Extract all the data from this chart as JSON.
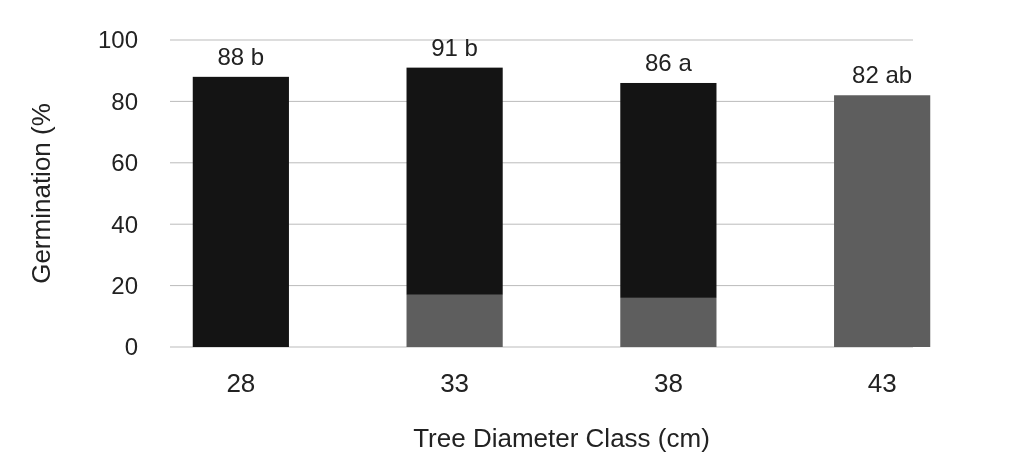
{
  "chart_data": {
    "type": "bar",
    "stacked": true,
    "xlabel": "Tree Diameter Class (cm)",
    "ylabel": "Germination (%",
    "categories": [
      "28",
      "33",
      "38",
      "43"
    ],
    "series": [
      {
        "color": "#5e5e5e",
        "values": [
          0,
          17,
          16,
          82
        ]
      },
      {
        "color": "#141414",
        "values": [
          88,
          74,
          70,
          0
        ]
      }
    ],
    "totals": [
      "88 b",
      "91 b",
      "86 a",
      "82 ab"
    ],
    "ylim": [
      0,
      100
    ],
    "yticks": [
      0,
      20,
      40,
      60,
      80,
      100
    ],
    "grid": "y"
  }
}
